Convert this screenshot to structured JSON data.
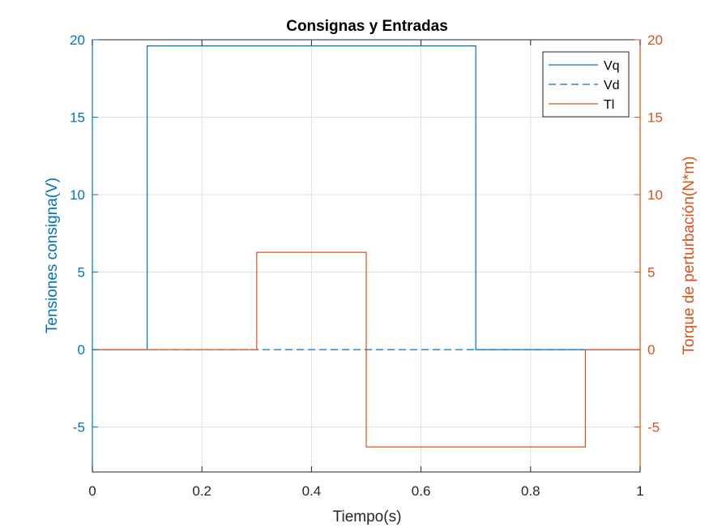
{
  "chart_data": {
    "type": "line",
    "title": "Consignas y Entradas",
    "xlabel": "Tiempo(s)",
    "ylabel_left": "Tensiones consigna(V)",
    "ylabel_right": "Torque de perturbación(N*m)",
    "xlim": [
      0,
      1
    ],
    "ylim": [
      -7.9,
      20
    ],
    "x_ticks": [
      0,
      0.2,
      0.4,
      0.6,
      0.8,
      1
    ],
    "x_tick_labels": [
      "0",
      "0.2",
      "0.4",
      "0.6",
      "0.8",
      "1"
    ],
    "y_ticks": [
      -5,
      0,
      5,
      10,
      15,
      20
    ],
    "y_tick_labels": [
      "-5",
      "0",
      "5",
      "10",
      "15",
      "20"
    ],
    "grid": true,
    "legend_position": "top-right",
    "colors": {
      "left_axis": "#0072BD",
      "right_axis": "#D95319",
      "Vq": "#0072BD",
      "Vd": "#0072BD",
      "Tl": "#D95319",
      "grid": "#DEDEDE",
      "axes": "#262626"
    },
    "series": [
      {
        "name": "Vq",
        "style": "solid",
        "x": [
          0,
          0.1,
          0.1,
          0.7,
          0.7,
          1
        ],
        "y": [
          0,
          0,
          19.6,
          19.6,
          0,
          0
        ]
      },
      {
        "name": "Vd",
        "style": "dashed",
        "x": [
          0,
          1
        ],
        "y": [
          0,
          0
        ]
      },
      {
        "name": "Tl",
        "style": "solid",
        "x": [
          0,
          0.3,
          0.3,
          0.5,
          0.5,
          0.9,
          0.9,
          1
        ],
        "y": [
          0,
          0,
          6.28,
          6.28,
          -6.28,
          -6.28,
          0,
          0
        ]
      }
    ]
  }
}
